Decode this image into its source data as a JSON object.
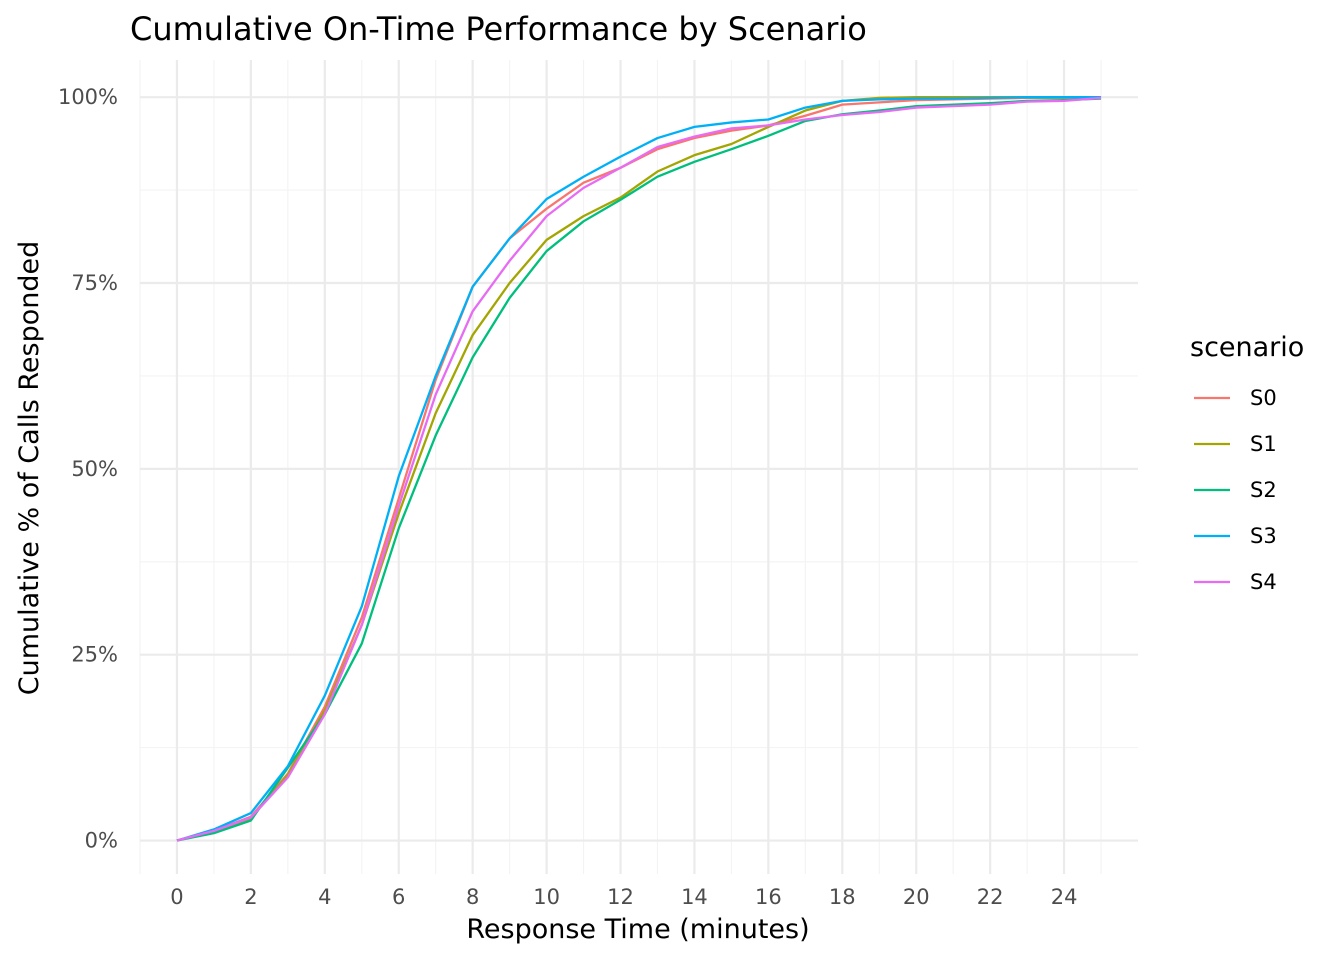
{
  "chart_data": {
    "type": "line",
    "title": "Cumulative On-Time Performance by Scenario",
    "xlabel": "Response Time (minutes)",
    "ylabel": "Cumulative % of Calls Responded",
    "xlim": [
      -1,
      26
    ],
    "ylim": [
      -0.045,
      1.05
    ],
    "x_ticks": [
      0,
      2,
      4,
      6,
      8,
      10,
      12,
      14,
      16,
      18,
      20,
      22,
      24
    ],
    "x_tick_labels": [
      "0",
      "2",
      "4",
      "6",
      "8",
      "10",
      "12",
      "14",
      "16",
      "18",
      "20",
      "22",
      "24"
    ],
    "y_ticks": [
      0,
      0.25,
      0.5,
      0.75,
      1.0
    ],
    "y_tick_labels": [
      "0%",
      "25%",
      "50%",
      "75%",
      "100%"
    ],
    "grid": true,
    "legend": {
      "title": "scenario",
      "position": "right"
    },
    "x": [
      0,
      1,
      2,
      3,
      4,
      5,
      6,
      7,
      8,
      9,
      10,
      11,
      12,
      13,
      14,
      15,
      16,
      17,
      18,
      19,
      20,
      21,
      22,
      23,
      24,
      25
    ],
    "series": [
      {
        "name": "S0",
        "color": "#F8766D",
        "values": [
          0,
          0.013,
          0.032,
          0.09,
          0.18,
          0.3,
          0.46,
          0.62,
          0.745,
          0.81,
          0.85,
          0.885,
          0.905,
          0.93,
          0.945,
          0.955,
          0.962,
          0.975,
          0.99,
          0.993,
          0.996,
          0.997,
          0.998,
          0.999,
          0.999,
          1.0
        ]
      },
      {
        "name": "S1",
        "color": "#A3A500",
        "values": [
          0,
          0.012,
          0.03,
          0.088,
          0.175,
          0.29,
          0.44,
          0.575,
          0.68,
          0.75,
          0.808,
          0.84,
          0.865,
          0.9,
          0.922,
          0.937,
          0.96,
          0.982,
          0.995,
          0.999,
          1.0,
          1.0,
          1.0,
          1.0,
          1.0,
          1.0
        ]
      },
      {
        "name": "S2",
        "color": "#00BF7D",
        "values": [
          0,
          0.01,
          0.027,
          0.098,
          0.17,
          0.265,
          0.42,
          0.545,
          0.65,
          0.73,
          0.793,
          0.833,
          0.862,
          0.893,
          0.913,
          0.93,
          0.948,
          0.968,
          0.977,
          0.982,
          0.988,
          0.99,
          0.992,
          0.995,
          0.996,
          0.998
        ]
      },
      {
        "name": "S3",
        "color": "#00B0F6",
        "values": [
          0,
          0.015,
          0.037,
          0.1,
          0.195,
          0.315,
          0.49,
          0.625,
          0.745,
          0.81,
          0.863,
          0.893,
          0.92,
          0.945,
          0.96,
          0.966,
          0.97,
          0.986,
          0.995,
          0.997,
          0.998,
          0.998,
          0.999,
          1.0,
          1.0,
          1.0
        ]
      },
      {
        "name": "S4",
        "color": "#E76BF3",
        "values": [
          0,
          0.013,
          0.031,
          0.085,
          0.17,
          0.29,
          0.45,
          0.6,
          0.712,
          0.78,
          0.84,
          0.878,
          0.905,
          0.933,
          0.947,
          0.958,
          0.962,
          0.97,
          0.976,
          0.98,
          0.986,
          0.988,
          0.99,
          0.994,
          0.995,
          0.999
        ]
      }
    ]
  }
}
